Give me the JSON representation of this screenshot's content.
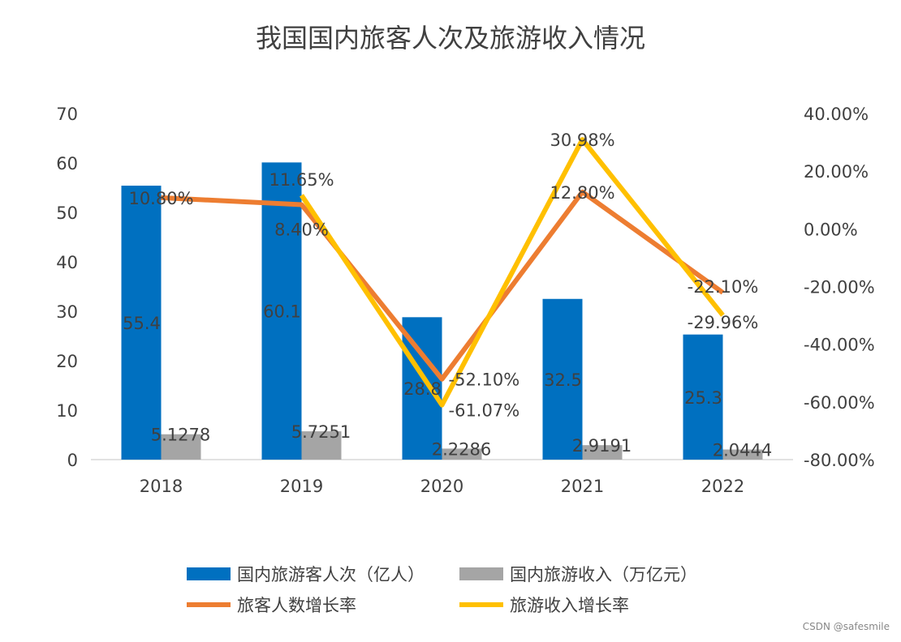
{
  "chart_data": {
    "type": "bar+line",
    "title": "我国国内旅客人次及旅游收入情况",
    "categories": [
      "2018",
      "2019",
      "2020",
      "2021",
      "2022"
    ],
    "y_left": {
      "range": [
        0,
        70
      ],
      "ticks": [
        "0",
        "10",
        "20",
        "30",
        "40",
        "50",
        "60",
        "70"
      ]
    },
    "y_right": {
      "range": [
        -80,
        40
      ],
      "ticks": [
        "-80.00%",
        "-60.00%",
        "-40.00%",
        "-20.00%",
        "0.00%",
        "20.00%",
        "40.00%"
      ]
    },
    "bar_series": [
      {
        "name": "国内旅游客人次（亿人）",
        "color": "#0070C0",
        "values": [
          55.4,
          60.1,
          28.8,
          32.5,
          25.3
        ],
        "labels": [
          "55.4",
          "60.1",
          "28.8",
          "32.5",
          "25.3"
        ]
      },
      {
        "name": "国内旅游收入（万亿元）",
        "color": "#A5A5A5",
        "values": [
          5.1278,
          5.7251,
          2.2286,
          2.9191,
          2.0444
        ],
        "labels": [
          "5.1278",
          "5.7251",
          "2.2286",
          "2.9191",
          "2.0444"
        ]
      }
    ],
    "line_series": [
      {
        "name": "旅客人数增长率",
        "color": "#ED7D31",
        "values": [
          10.8,
          8.4,
          -52.1,
          12.8,
          -22.1
        ],
        "labels": [
          "10.80%",
          "8.40%",
          "-52.10%",
          "12.80%",
          "-22.10%"
        ]
      },
      {
        "name": "旅游收入增长率",
        "color": "#FFC000",
        "values": [
          null,
          11.65,
          -61.07,
          30.98,
          -29.96
        ],
        "labels": [
          "",
          "11.65%",
          "-61.07%",
          "30.98%",
          "-29.96%"
        ]
      }
    ],
    "legend": "bottom",
    "grid": false
  },
  "watermark": "CSDN @safesmile"
}
